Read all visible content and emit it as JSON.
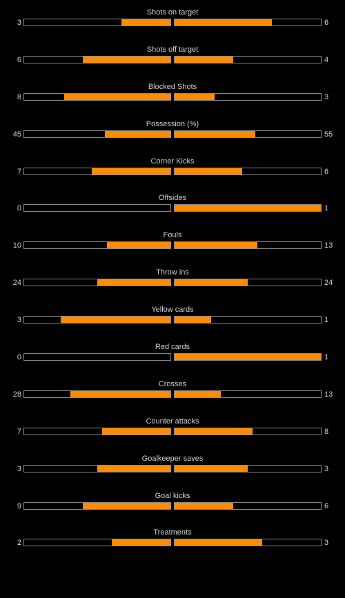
{
  "colors": {
    "background": "#000000",
    "bar_fill": "#ff8c00",
    "bar_border": "#8a8a8a",
    "text": "#d0d0d0"
  },
  "stats": [
    {
      "label": "Shots on target",
      "home": "3",
      "away": "6",
      "home_share": 0.333,
      "away_share": 0.667
    },
    {
      "label": "Shots off target",
      "home": "6",
      "away": "4",
      "home_share": 0.6,
      "away_share": 0.4
    },
    {
      "label": "Blocked Shots",
      "home": "8",
      "away": "3",
      "home_share": 0.727,
      "away_share": 0.273
    },
    {
      "label": "Possession (%)",
      "home": "45",
      "away": "55",
      "home_share": 0.45,
      "away_share": 0.55
    },
    {
      "label": "Corner Kicks",
      "home": "7",
      "away": "6",
      "home_share": 0.538,
      "away_share": 0.462
    },
    {
      "label": "Offsides",
      "home": "0",
      "away": "1",
      "home_share": 0.0,
      "away_share": 1.0
    },
    {
      "label": "Fouls",
      "home": "10",
      "away": "13",
      "home_share": 0.435,
      "away_share": 0.565
    },
    {
      "label": "Throw ins",
      "home": "24",
      "away": "24",
      "home_share": 0.5,
      "away_share": 0.5
    },
    {
      "label": "Yellow cards",
      "home": "3",
      "away": "1",
      "home_share": 0.75,
      "away_share": 0.25
    },
    {
      "label": "Red cards",
      "home": "0",
      "away": "1",
      "home_share": 0.0,
      "away_share": 1.0
    },
    {
      "label": "Crosses",
      "home": "28",
      "away": "13",
      "home_share": 0.683,
      "away_share": 0.317
    },
    {
      "label": "Counter attacks",
      "home": "7",
      "away": "8",
      "home_share": 0.467,
      "away_share": 0.533
    },
    {
      "label": "Goalkeeper saves",
      "home": "3",
      "away": "3",
      "home_share": 0.5,
      "away_share": 0.5
    },
    {
      "label": "Goal kicks",
      "home": "9",
      "away": "6",
      "home_share": 0.6,
      "away_share": 0.4
    },
    {
      "label": "Treatments",
      "home": "2",
      "away": "3",
      "home_share": 0.4,
      "away_share": 0.6
    }
  ]
}
